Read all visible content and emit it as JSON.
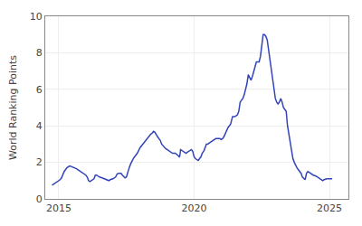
{
  "chart_data": {
    "type": "line",
    "ylabel": "World Ranking Points",
    "x": [
      2014.75,
      2014.85,
      2015.0,
      2015.05,
      2015.1,
      2015.15,
      2015.2,
      2015.3,
      2015.35,
      2015.4,
      2015.5,
      2015.6,
      2015.65,
      2015.7,
      2015.8,
      2015.85,
      2015.9,
      2016.0,
      2016.05,
      2016.1,
      2016.15,
      2016.2,
      2016.3,
      2016.35,
      2016.4,
      2016.45,
      2016.5,
      2016.6,
      2016.7,
      2016.8,
      2016.85,
      2016.9,
      2017.0,
      2017.1,
      2017.15,
      2017.2,
      2017.3,
      2017.35,
      2017.4,
      2017.45,
      2017.5,
      2017.55,
      2017.6,
      2017.65,
      2017.7,
      2017.75,
      2017.8,
      2017.9,
      2018.0,
      2018.05,
      2018.1,
      2018.15,
      2018.2,
      2018.25,
      2018.3,
      2018.35,
      2018.4,
      2018.45,
      2018.5,
      2018.55,
      2018.6,
      2018.65,
      2018.7,
      2018.75,
      2018.8,
      2018.85,
      2018.9,
      2018.95,
      2019.0,
      2019.05,
      2019.1,
      2019.15,
      2019.2,
      2019.25,
      2019.3,
      2019.35,
      2019.4,
      2019.42,
      2019.45,
      2019.47,
      2019.5,
      2019.55,
      2019.6,
      2019.65,
      2019.7,
      2019.75,
      2019.8,
      2019.85,
      2019.9,
      2019.95,
      2020.0,
      2020.05,
      2020.1,
      2020.15,
      2020.2,
      2020.25,
      2020.3,
      2020.35,
      2020.37,
      2020.4,
      2020.42,
      2020.45,
      2020.5,
      2020.55,
      2020.6,
      2020.65,
      2020.7,
      2020.75,
      2020.8,
      2020.85,
      2020.9,
      2020.95,
      2021.0,
      2021.05,
      2021.1,
      2021.15,
      2021.2,
      2021.25,
      2021.3,
      2021.35,
      2021.4,
      2021.42,
      2021.45,
      2021.5,
      2021.55,
      2021.6,
      2021.65,
      2021.7,
      2021.75,
      2021.8,
      2021.85,
      2021.9,
      2021.95,
      2022.0,
      2022.05,
      2022.1,
      2022.15,
      2022.2,
      2022.25,
      2022.3,
      2022.35,
      2022.4,
      2022.45,
      2022.5,
      2022.55,
      2022.6,
      2022.65,
      2022.7,
      2022.75,
      2022.8,
      2022.85,
      2022.9,
      2022.95,
      2023.0,
      2023.05,
      2023.1,
      2023.15,
      2023.2,
      2023.25,
      2023.3,
      2023.35,
      2023.4,
      2023.45,
      2023.5,
      2023.55,
      2023.6,
      2023.65,
      2023.7,
      2023.75,
      2023.8,
      2023.85,
      2023.9,
      2023.95,
      2024.0,
      2024.05,
      2024.1,
      2024.15,
      2024.2,
      2024.25,
      2024.3,
      2024.35,
      2024.4,
      2024.5,
      2024.6,
      2024.7,
      2024.75,
      2024.8,
      2024.9,
      2025.0,
      2025.1
    ],
    "values": [
      0.75,
      0.85,
      1.0,
      1.05,
      1.15,
      1.3,
      1.5,
      1.7,
      1.75,
      1.8,
      1.75,
      1.7,
      1.65,
      1.6,
      1.5,
      1.45,
      1.4,
      1.3,
      1.2,
      1.0,
      0.95,
      1.0,
      1.1,
      1.3,
      1.3,
      1.25,
      1.2,
      1.15,
      1.1,
      1.05,
      1.0,
      1.05,
      1.1,
      1.2,
      1.35,
      1.4,
      1.4,
      1.3,
      1.2,
      1.15,
      1.2,
      1.5,
      1.7,
      1.9,
      2.1,
      2.2,
      2.3,
      2.5,
      2.8,
      2.9,
      3.0,
      3.1,
      3.2,
      3.3,
      3.35,
      3.5,
      3.55,
      3.6,
      3.7,
      3.65,
      3.5,
      3.4,
      3.3,
      3.2,
      3.0,
      2.9,
      2.8,
      2.75,
      2.7,
      2.65,
      2.6,
      2.55,
      2.5,
      2.5,
      2.5,
      2.45,
      2.4,
      2.35,
      2.3,
      2.35,
      2.7,
      2.65,
      2.6,
      2.55,
      2.5,
      2.55,
      2.6,
      2.65,
      2.7,
      2.6,
      2.3,
      2.2,
      2.15,
      2.1,
      2.2,
      2.3,
      2.5,
      2.6,
      2.65,
      2.8,
      2.85,
      3.0,
      3.0,
      3.05,
      3.1,
      3.15,
      3.2,
      3.25,
      3.3,
      3.3,
      3.3,
      3.3,
      3.25,
      3.3,
      3.4,
      3.6,
      3.8,
      3.9,
      4.0,
      4.1,
      4.4,
      4.5,
      4.5,
      4.5,
      4.55,
      4.6,
      4.8,
      5.3,
      5.4,
      5.5,
      5.7,
      6.0,
      6.3,
      6.8,
      6.6,
      6.5,
      6.7,
      7.0,
      7.3,
      7.5,
      7.5,
      7.5,
      7.8,
      8.5,
      9.0,
      9.0,
      8.9,
      8.7,
      8.2,
      7.5,
      7.0,
      6.5,
      6.0,
      5.5,
      5.3,
      5.2,
      5.3,
      5.5,
      5.3,
      5.0,
      4.9,
      4.8,
      4.0,
      3.5,
      3.0,
      2.5,
      2.2,
      2.0,
      1.8,
      1.7,
      1.6,
      1.5,
      1.4,
      1.2,
      1.1,
      1.05,
      1.4,
      1.5,
      1.45,
      1.4,
      1.35,
      1.3,
      1.25,
      1.15,
      1.05,
      1.0,
      1.05,
      1.1,
      1.1,
      1.1
    ],
    "color": "#3344bb",
    "xlim": [
      2014.5,
      2025.7
    ],
    "xticks": [
      2015,
      2020,
      2025
    ],
    "ylim": [
      0,
      10
    ],
    "yticks": [
      0,
      2,
      4,
      6,
      8,
      10
    ],
    "grid": true
  }
}
